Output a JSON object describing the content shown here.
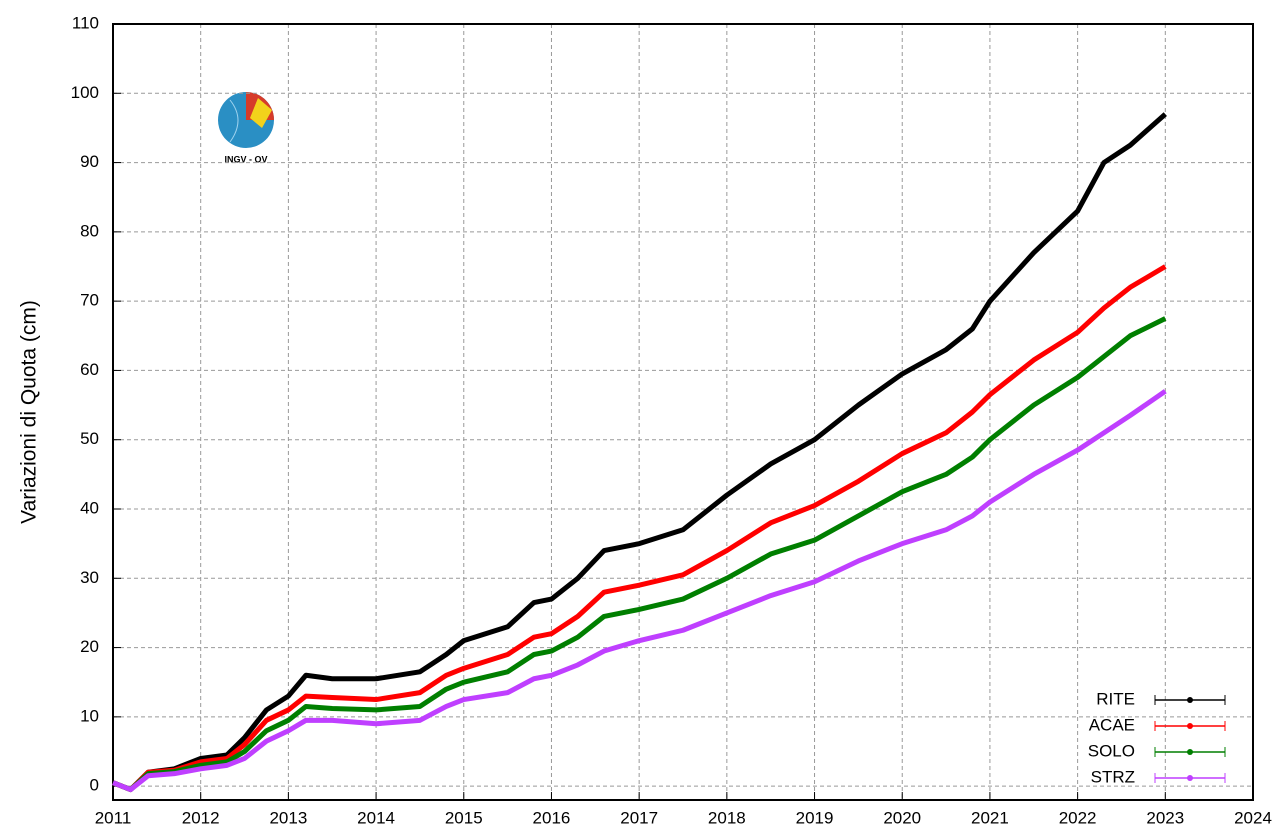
{
  "chart_data": {
    "type": "line",
    "ylabel": "Variazioni di Quota (cm)",
    "logo_text": "INGV - OV",
    "x": [
      2011,
      2011.2,
      2011.4,
      2011.7,
      2012,
      2012.3,
      2012.5,
      2012.75,
      2013,
      2013.2,
      2013.5,
      2014,
      2014.5,
      2014.8,
      2015,
      2015.5,
      2015.8,
      2016,
      2016.3,
      2016.6,
      2017,
      2017.5,
      2018,
      2018.5,
      2019,
      2019.5,
      2020,
      2020.5,
      2020.8,
      2021,
      2021.5,
      2022,
      2022.3,
      2022.6,
      2023
    ],
    "series": [
      {
        "name": "RITE",
        "color": "#000000",
        "values": [
          0.5,
          -0.5,
          2,
          2.5,
          4,
          4.5,
          7,
          11,
          13,
          16,
          15.5,
          15.5,
          16.5,
          19,
          21,
          23,
          26.5,
          27,
          30,
          34,
          35,
          37,
          42,
          46.5,
          50,
          55,
          59.5,
          63,
          66,
          70,
          77,
          83,
          90,
          92.5,
          97
        ]
      },
      {
        "name": "ACAE",
        "color": "#ff0000",
        "values": [
          0.5,
          -0.5,
          2,
          2.3,
          3.5,
          4,
          6,
          9.5,
          11,
          13,
          12.8,
          12.5,
          13.5,
          16,
          17,
          19,
          21.5,
          22,
          24.5,
          28,
          29,
          30.5,
          34,
          38,
          40.5,
          44,
          48,
          51,
          54,
          56.5,
          61.5,
          65.5,
          69,
          72,
          75
        ]
      },
      {
        "name": "SOLO",
        "color": "#007f00",
        "values": [
          0.5,
          -0.5,
          1.8,
          2.1,
          3,
          3.5,
          5,
          8,
          9.5,
          11.5,
          11.2,
          11,
          11.5,
          14,
          15,
          16.5,
          19,
          19.5,
          21.5,
          24.5,
          25.5,
          27,
          30,
          33.5,
          35.5,
          39,
          42.5,
          45,
          47.5,
          50,
          55,
          59,
          62,
          65,
          67.5
        ]
      },
      {
        "name": "STRZ",
        "color": "#bf3fff",
        "values": [
          0.5,
          -0.5,
          1.5,
          1.8,
          2.5,
          3,
          4,
          6.5,
          8,
          9.5,
          9.5,
          9,
          9.5,
          11.5,
          12.5,
          13.5,
          15.5,
          16,
          17.5,
          19.5,
          21,
          22.5,
          25,
          27.5,
          29.5,
          32.5,
          35,
          37,
          39,
          41,
          45,
          48.5,
          51,
          53.5,
          57
        ]
      }
    ],
    "xlim": [
      2011,
      2024
    ],
    "xticks": [
      2011,
      2012,
      2013,
      2014,
      2015,
      2016,
      2017,
      2018,
      2019,
      2020,
      2021,
      2022,
      2023,
      2024
    ],
    "ylim": [
      -2,
      110
    ],
    "yticks": [
      0,
      10,
      20,
      30,
      40,
      50,
      60,
      70,
      80,
      90,
      100,
      110
    ],
    "grid": true,
    "legend": "lower right"
  }
}
